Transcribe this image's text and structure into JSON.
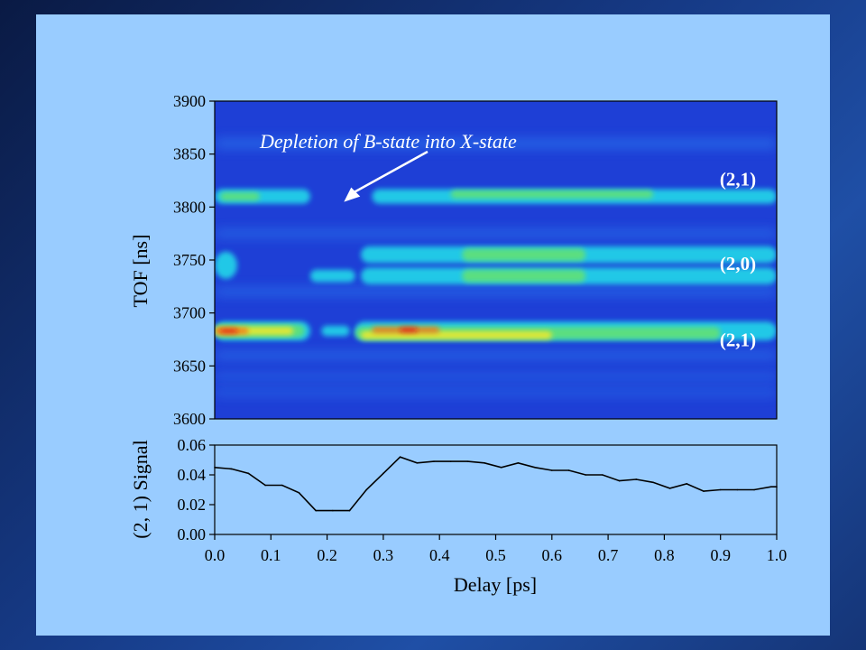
{
  "chart_data": [
    {
      "type": "heatmap",
      "title": "",
      "xlabel": "",
      "ylabel": "TOF [ns]",
      "xlim": [
        0.0,
        1.0
      ],
      "ylim": [
        3600,
        3900
      ],
      "yticks": [
        "3600",
        "3650",
        "3700",
        "3750",
        "3800",
        "3850",
        "3900"
      ],
      "colormap": [
        "#1e3fd6",
        "#2a7cf0",
        "#22d0e8",
        "#5ee07a",
        "#e8e830",
        "#f07a1a",
        "#e01818"
      ],
      "bands": [
        {
          "name": "(2,1)",
          "tof": 3810
        },
        {
          "name": "(2,0)",
          "tof": 3745
        },
        {
          "name": "(2,1)",
          "tof": 3683
        }
      ],
      "annotations": [
        {
          "text": "Depletion of B-state into X-state",
          "x": 0.23,
          "y": 3810
        }
      ]
    },
    {
      "type": "line",
      "title": "",
      "xlabel": "Delay [ps]",
      "ylabel": "(2, 1) Signal",
      "xlim": [
        0.0,
        1.0
      ],
      "ylim": [
        0.0,
        0.06
      ],
      "xticks": [
        "0.0",
        "0.1",
        "0.2",
        "0.3",
        "0.4",
        "0.5",
        "0.6",
        "0.7",
        "0.8",
        "0.9",
        "1.0"
      ],
      "yticks": [
        "0.00",
        "0.02",
        "0.04",
        "0.06"
      ],
      "x": [
        0.0,
        0.03,
        0.06,
        0.09,
        0.12,
        0.15,
        0.18,
        0.21,
        0.24,
        0.27,
        0.3,
        0.33,
        0.36,
        0.39,
        0.42,
        0.45,
        0.48,
        0.51,
        0.54,
        0.57,
        0.6,
        0.63,
        0.66,
        0.69,
        0.72,
        0.75,
        0.78,
        0.81,
        0.84,
        0.87,
        0.9,
        0.93,
        0.96,
        0.99,
        1.0
      ],
      "values": [
        0.045,
        0.044,
        0.041,
        0.033,
        0.033,
        0.028,
        0.016,
        0.016,
        0.016,
        0.03,
        0.041,
        0.052,
        0.048,
        0.049,
        0.049,
        0.049,
        0.048,
        0.045,
        0.048,
        0.045,
        0.043,
        0.043,
        0.04,
        0.04,
        0.036,
        0.037,
        0.035,
        0.031,
        0.034,
        0.029,
        0.03,
        0.03,
        0.03,
        0.032,
        0.032
      ]
    }
  ]
}
